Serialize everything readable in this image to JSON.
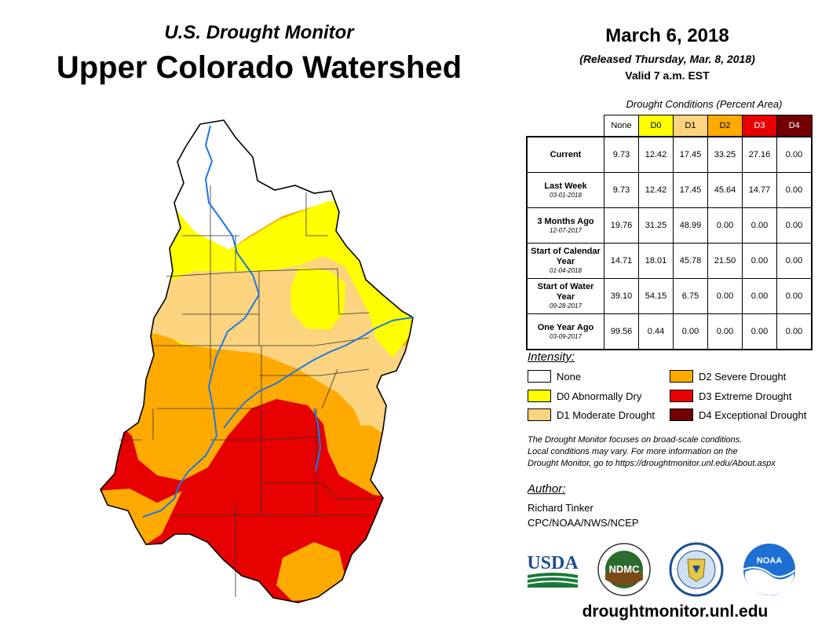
{
  "header": {
    "subtitle": "U.S. Drought Monitor",
    "title": "Upper Colorado Watershed",
    "date": "March 6, 2018",
    "released": "(Released Thursday, Mar. 8, 2018)",
    "valid": "Valid 7 a.m. EST"
  },
  "conditions": {
    "caption": "Drought Conditions (Percent Area)",
    "columns": [
      "None",
      "D0",
      "D1",
      "D2",
      "D3",
      "D4"
    ],
    "rows": [
      {
        "label": "Current",
        "sub": "",
        "values": [
          "9.73",
          "12.42",
          "17.45",
          "33.25",
          "27.16",
          "0.00"
        ]
      },
      {
        "label": "Last Week",
        "sub": "03-01-2018",
        "values": [
          "9.73",
          "12.42",
          "17.45",
          "45.64",
          "14.77",
          "0.00"
        ]
      },
      {
        "label": "3 Months Ago",
        "sub": "12-07-2017",
        "values": [
          "19.76",
          "31.25",
          "48.99",
          "0.00",
          "0.00",
          "0.00"
        ]
      },
      {
        "label": "Start of Calendar Year",
        "sub": "01-04-2018",
        "values": [
          "14.71",
          "18.01",
          "45.78",
          "21.50",
          "0.00",
          "0.00"
        ]
      },
      {
        "label": "Start of Water Year",
        "sub": "09-28-2017",
        "values": [
          "39.10",
          "54.15",
          "6.75",
          "0.00",
          "0.00",
          "0.00"
        ]
      },
      {
        "label": "One Year Ago",
        "sub": "03-09-2017",
        "values": [
          "99.56",
          "0.44",
          "0.00",
          "0.00",
          "0.00",
          "0.00"
        ]
      }
    ]
  },
  "legend": {
    "heading": "Intensity:",
    "items": [
      {
        "label": "None",
        "color": "#ffffff"
      },
      {
        "label": "D0 Abnormally Dry",
        "color": "#ffff00"
      },
      {
        "label": "D1 Moderate Drought",
        "color": "#fcd37f"
      },
      {
        "label": "D2 Severe Drought",
        "color": "#ffaa00"
      },
      {
        "label": "D3 Extreme Drought",
        "color": "#e60000"
      },
      {
        "label": "D4 Exceptional Drought",
        "color": "#730000"
      }
    ]
  },
  "note": {
    "line1": "The Drought Monitor focuses on broad-scale conditions.",
    "line2": "Local conditions may vary. For more information on the",
    "line3": "Drought Monitor, go to https://droughtmonitor.unl.edu/About.aspx"
  },
  "author": {
    "heading": "Author:",
    "name": "Richard Tinker",
    "org": "CPC/NOAA/NWS/NCEP"
  },
  "logos": {
    "usda": "USDA",
    "ndmc": "NDMC",
    "noaa": "NOAA"
  },
  "footer": {
    "url": "droughtmonitor.unl.edu"
  },
  "colors": {
    "none": "#ffffff",
    "d0": "#ffff00",
    "d1": "#fcd37f",
    "d2": "#ffaa00",
    "d3": "#e60000",
    "d4": "#730000",
    "river": "#1e78e6"
  }
}
